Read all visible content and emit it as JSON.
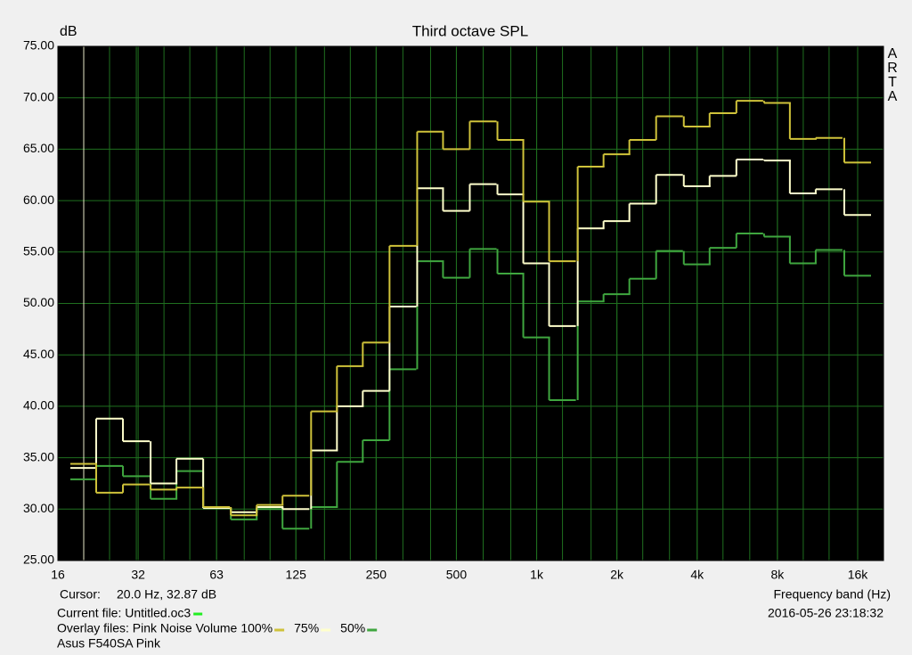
{
  "chart_data": {
    "type": "step",
    "title": "Third octave SPL",
    "y_label": "dB",
    "x_label": "Frequency band (Hz)",
    "watermark": [
      "A",
      "R",
      "T",
      "A"
    ],
    "log_x": true,
    "grid": true,
    "grid_color": "#1f6f1f",
    "plot_background": "#000000",
    "xlim": [
      16,
      20000
    ],
    "xticks": [
      16,
      32,
      63,
      125,
      250,
      500,
      {
        "value": 1000,
        "label": "1k"
      },
      {
        "value": 2000,
        "label": "2k"
      },
      {
        "value": 4000,
        "label": "4k"
      },
      {
        "value": 8000,
        "label": "8k"
      },
      {
        "value": 16000,
        "label": "16k"
      }
    ],
    "ylim": [
      25,
      75
    ],
    "yticks": [
      {
        "value": 25,
        "label": "25.00"
      },
      {
        "value": 30,
        "label": "30.00"
      },
      {
        "value": 35,
        "label": "35.00"
      },
      {
        "value": 40,
        "label": "40.00"
      },
      {
        "value": 45,
        "label": "45.00"
      },
      {
        "value": 50,
        "label": "50.00"
      },
      {
        "value": 55,
        "label": "55.00"
      },
      {
        "value": 60,
        "label": "60.00"
      },
      {
        "value": 65,
        "label": "65.00"
      },
      {
        "value": 70,
        "label": "70.00"
      },
      {
        "value": 75,
        "label": "75.00"
      }
    ],
    "x": [
      20,
      25,
      31.5,
      40,
      50,
      63,
      80,
      100,
      125,
      160,
      200,
      250,
      315,
      400,
      500,
      630,
      800,
      1000,
      1250,
      1600,
      2000,
      2500,
      3150,
      4000,
      5000,
      6300,
      8000,
      10000,
      12500,
      16000
    ],
    "series": [
      {
        "name": "100%",
        "color": "#cfc23a",
        "values": [
          34.4,
          31.6,
          32.4,
          31.9,
          32.1,
          30.2,
          29.4,
          30.4,
          31.3,
          39.5,
          43.9,
          46.2,
          55.6,
          66.7,
          65.0,
          67.7,
          65.9,
          59.9,
          54.1,
          63.3,
          64.5,
          65.9,
          68.2,
          67.2,
          68.5,
          69.7,
          69.5,
          66.0,
          66.1,
          63.7
        ]
      },
      {
        "name": "75%",
        "color": "#ffffcc",
        "values": [
          34.0,
          38.8,
          36.6,
          32.5,
          34.9,
          30.1,
          29.7,
          30.2,
          30.0,
          35.7,
          40.0,
          41.5,
          49.7,
          61.2,
          59.0,
          61.6,
          60.6,
          53.9,
          47.8,
          57.3,
          58.0,
          59.7,
          62.5,
          61.4,
          62.4,
          64.0,
          63.9,
          60.7,
          61.1,
          58.6
        ]
      },
      {
        "name": "50%",
        "color": "#3fa63f",
        "values": [
          32.9,
          34.2,
          33.2,
          31.0,
          33.7,
          30.1,
          29.0,
          30.0,
          28.1,
          30.2,
          34.6,
          36.7,
          43.6,
          54.1,
          52.5,
          55.3,
          52.9,
          46.7,
          40.6,
          50.2,
          50.9,
          52.4,
          55.1,
          53.8,
          55.4,
          56.8,
          56.5,
          53.9,
          55.2,
          52.7
        ]
      }
    ],
    "cursor": {
      "label": "Cursor:",
      "x": 20,
      "text": "20.0 Hz, 32.87 dB",
      "color": "#e8e8c8"
    },
    "current_file": {
      "text": "Current file: Untitled.oc3",
      "color": "#22ee22"
    },
    "overlay_label": "Overlay files: Pink Noise Volume",
    "timestamp": "2016-05-26  23:18:32",
    "device": "Asus F540SA Pink"
  }
}
